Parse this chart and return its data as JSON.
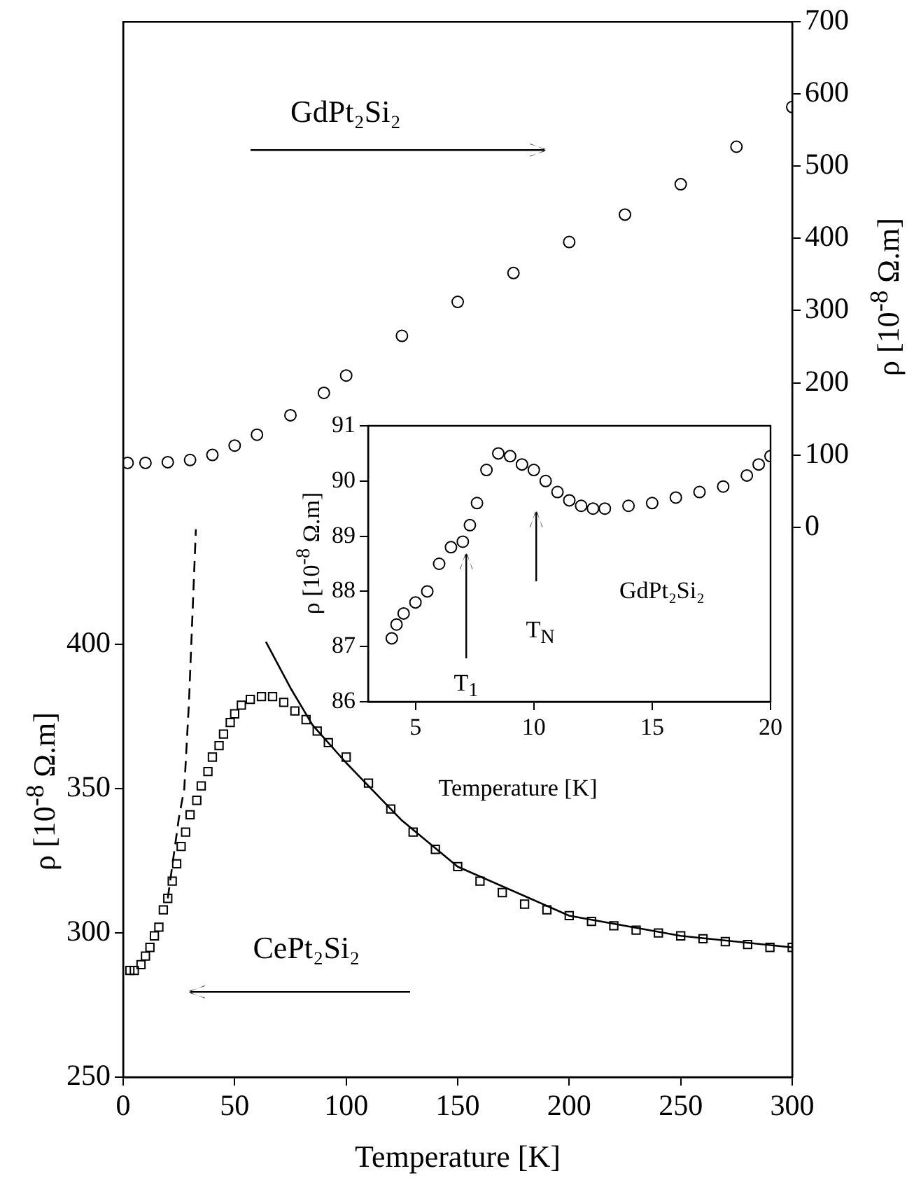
{
  "chart_data": [
    {
      "type": "scatter",
      "xlabel": "Temperature [K]",
      "ylabel": "ρ [10$^{-8}$ Ω.m]",
      "y2label": "ρ [10$^{-8}$ Ω.m]",
      "xlim": [
        0,
        300
      ],
      "xticks": [
        0,
        50,
        100,
        150,
        200,
        250,
        300
      ],
      "ylim": [
        250,
        616
      ],
      "yticks": [
        250,
        300,
        350,
        400
      ],
      "y2lim": [
        -762,
        700
      ],
      "y2ticks": [
        0,
        100,
        200,
        300,
        400,
        500,
        600,
        700
      ],
      "series": [
        {
          "type": "scatter",
          "marker": "square",
          "color": "#000000",
          "x": [
            3,
            5,
            8,
            10,
            12,
            14,
            16,
            18,
            20,
            22,
            24,
            26,
            28,
            30,
            33,
            35,
            38,
            40,
            43,
            45,
            48,
            50,
            53,
            57,
            62,
            67,
            72,
            77,
            82,
            87,
            92,
            100,
            110,
            120,
            130,
            140,
            150,
            160,
            170,
            180,
            190,
            200,
            210,
            220,
            230,
            240,
            250,
            260,
            270,
            280,
            290,
            300
          ],
          "values": [
            287,
            287,
            289,
            292,
            295,
            299,
            302,
            308,
            312,
            318,
            324,
            330,
            335,
            341,
            346,
            351,
            356,
            361,
            365,
            369,
            373,
            376,
            379,
            381,
            382,
            382,
            380,
            377,
            374,
            370,
            366,
            361,
            352,
            343,
            335,
            329,
            323,
            318,
            314,
            310,
            308,
            306,
            304,
            302.5,
            301,
            300,
            299,
            298,
            297,
            296,
            295,
            295
          ]
        },
        {
          "type": "scatter",
          "marker": "circle",
          "axis": "y2",
          "color": "#000000",
          "x": [
            2,
            10,
            20,
            30,
            40,
            50,
            60,
            75,
            90,
            100,
            125,
            150,
            175,
            200,
            225,
            250,
            275,
            300
          ],
          "values": [
            89,
            89,
            90,
            93,
            100,
            113,
            128,
            155,
            186,
            210,
            265,
            312,
            352,
            395,
            433,
            475,
            527,
            582
          ]
        },
        {
          "type": "line",
          "line_style": "solid",
          "color": "#000000",
          "x": [
            64,
            75,
            85,
            100,
            125,
            150,
            200,
            250,
            300
          ],
          "values": [
            401,
            385,
            372,
            359,
            339,
            323,
            306,
            299,
            295
          ]
        },
        {
          "type": "line",
          "line_style": "dashed",
          "color": "#000000",
          "x": [
            20,
            25,
            27.4,
            29.5,
            32.6
          ],
          "values": [
            312,
            340,
            350,
            380,
            440
          ]
        }
      ],
      "annotations": [
        "GdPt₂Si₂",
        "CePt₂Si₂"
      ]
    },
    {
      "type": "scatter",
      "xlabel": "Temperature [K]",
      "ylabel": "ρ [10$^{-8}$ Ω.m]",
      "xlim": [
        3,
        20
      ],
      "xticks": [
        5,
        10,
        15,
        20
      ],
      "ylim": [
        86,
        91
      ],
      "yticks": [
        86,
        87,
        88,
        89,
        90,
        91
      ],
      "series": [
        {
          "type": "scatter",
          "marker": "circle",
          "color": "#000000",
          "x": [
            4,
            4.2,
            4.5,
            5,
            5.5,
            6,
            6.5,
            7,
            7.3,
            7.6,
            8,
            8.5,
            9,
            9.5,
            10,
            10.5,
            11,
            11.5,
            12,
            12.5,
            13,
            14,
            15,
            16,
            17,
            18,
            19,
            19.5,
            20
          ],
          "values": [
            87.15,
            87.4,
            87.6,
            87.8,
            88,
            88.5,
            88.8,
            88.9,
            89.2,
            89.6,
            90.2,
            90.5,
            90.45,
            90.3,
            90.2,
            90,
            89.8,
            89.65,
            89.55,
            89.5,
            89.5,
            89.55,
            89.6,
            89.7,
            89.8,
            89.9,
            90.1,
            90.3,
            90.45
          ]
        }
      ],
      "annotations": [
        "T$_{1}$",
        "T$_{N}$",
        "GdPt₂Si₂"
      ]
    }
  ]
}
